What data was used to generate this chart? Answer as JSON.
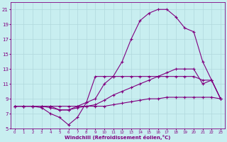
{
  "title": "",
  "xlabel": "Windchill (Refroidissement éolien,°C)",
  "background_color": "#c8eef0",
  "line_color": "#800080",
  "grid_color": "#b0d8dc",
  "xlim": [
    -0.5,
    23.5
  ],
  "ylim": [
    5,
    22
  ],
  "xticks": [
    0,
    1,
    2,
    3,
    4,
    5,
    6,
    7,
    8,
    9,
    10,
    11,
    12,
    13,
    14,
    15,
    16,
    17,
    18,
    19,
    20,
    21,
    22,
    23
  ],
  "yticks": [
    5,
    7,
    9,
    11,
    13,
    15,
    17,
    19,
    21
  ],
  "lines": [
    {
      "x": [
        0,
        1,
        2,
        3,
        4,
        5,
        6,
        7,
        8,
        9,
        10,
        11,
        12,
        13,
        14,
        15,
        16,
        17,
        18,
        19,
        20,
        21,
        22,
        23
      ],
      "y": [
        8,
        8,
        8,
        8,
        8,
        8,
        8,
        8,
        8,
        8,
        8,
        8.2,
        8.4,
        8.6,
        8.8,
        9,
        9,
        9.2,
        9.2,
        9.2,
        9.2,
        9.2,
        9.2,
        9
      ],
      "marker": "+",
      "markersize": 3,
      "linewidth": 0.8
    },
    {
      "x": [
        0,
        1,
        2,
        3,
        4,
        5,
        6,
        7,
        8,
        9,
        10,
        11,
        12,
        13,
        14,
        15,
        16,
        17,
        18,
        19,
        20,
        21,
        22,
        23
      ],
      "y": [
        8,
        8,
        8,
        8,
        7.8,
        7.5,
        7.5,
        7.8,
        8,
        8.2,
        8.8,
        9.5,
        10,
        10.5,
        11,
        11.5,
        12,
        12.5,
        13,
        13,
        13,
        11,
        11.5,
        9
      ],
      "marker": "+",
      "markersize": 3,
      "linewidth": 0.8
    },
    {
      "x": [
        0,
        1,
        2,
        3,
        4,
        5,
        6,
        7,
        8,
        9,
        10,
        11,
        12,
        13,
        14,
        15,
        16,
        17,
        18,
        19,
        20,
        21,
        22,
        23
      ],
      "y": [
        8,
        8,
        8,
        8,
        8,
        7.5,
        7.5,
        8,
        8.5,
        9,
        11,
        12,
        14,
        17,
        19.5,
        20.5,
        21,
        21,
        20,
        18.5,
        18,
        14,
        11.5,
        9
      ],
      "marker": "+",
      "markersize": 3,
      "linewidth": 0.8
    },
    {
      "x": [
        0,
        1,
        2,
        3,
        4,
        5,
        6,
        7,
        8,
        9,
        10,
        11,
        12,
        13,
        14,
        15,
        16,
        17,
        18,
        19,
        20,
        21,
        22,
        23
      ],
      "y": [
        8,
        8,
        8,
        7.8,
        7,
        6.5,
        5.5,
        6.5,
        8.5,
        12,
        12,
        12,
        12,
        12,
        12,
        12,
        12,
        12,
        12,
        12,
        12,
        11.5,
        11.5,
        9
      ],
      "marker": "+",
      "markersize": 3,
      "linewidth": 0.8
    }
  ]
}
